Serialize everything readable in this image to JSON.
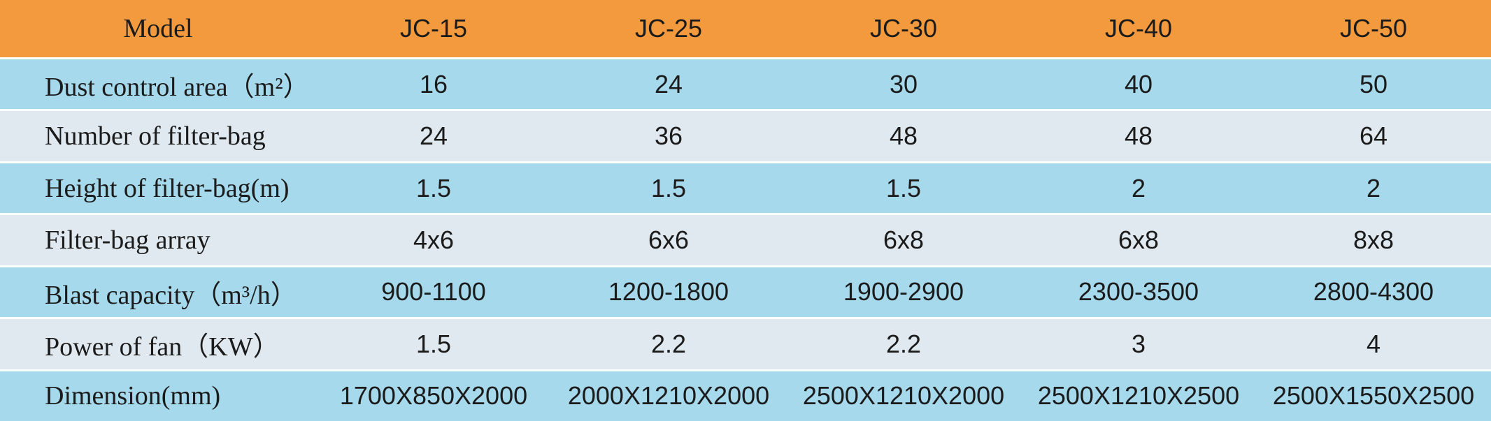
{
  "table": {
    "header": [
      "Model",
      "JC-15",
      "JC-25",
      "JC-30",
      "JC-40",
      "JC-50"
    ],
    "rows": [
      [
        "Dust control area（m²）",
        "16",
        "24",
        "30",
        "40",
        "50"
      ],
      [
        "Number of filter-bag",
        "24",
        "36",
        "48",
        "48",
        "64"
      ],
      [
        "Height of filter-bag(m)",
        "1.5",
        "1.5",
        "1.5",
        "2",
        "2"
      ],
      [
        "Filter-bag array",
        "4x6",
        "6x6",
        "6x8",
        "6x8",
        "8x8"
      ],
      [
        "Blast capacity（m³/h）",
        "900-1100",
        "1200-1800",
        "1900-2900",
        "2300-3500",
        "2800-4300"
      ],
      [
        "Power of fan（KW）",
        "1.5",
        "2.2",
        "2.2",
        "3",
        "4"
      ],
      [
        "Dimension(mm)",
        "1700X850X2000",
        "2000X1210X2000",
        "2500X1210X2000",
        "2500X1210X2500",
        "2500X1550X2500"
      ]
    ]
  }
}
